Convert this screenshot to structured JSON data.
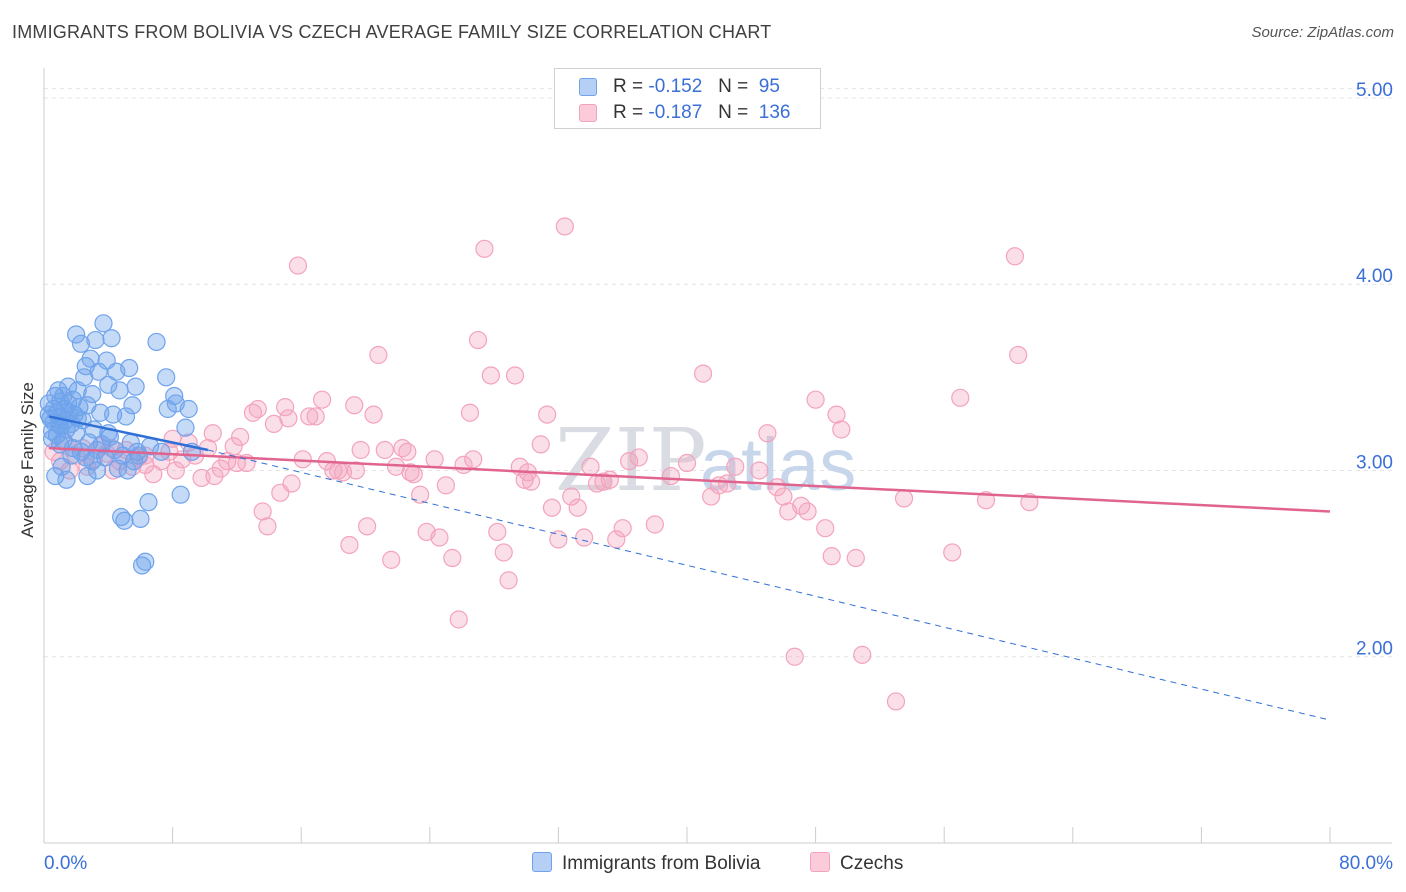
{
  "header": {
    "title": "IMMIGRANTS FROM BOLIVIA VS CZECH AVERAGE FAMILY SIZE CORRELATION CHART",
    "source": "Source: ZipAtlas.com"
  },
  "watermark": {
    "zip": "ZIP",
    "atlas": "atlas"
  },
  "legend": {
    "rows": [
      {
        "r_label": "R =",
        "r_value": "-0.152",
        "n_label": "N =",
        "n_value": "95"
      },
      {
        "r_label": "R =",
        "r_value": "-0.187",
        "n_label": "N =",
        "n_value": "136"
      }
    ]
  },
  "chart_data": {
    "type": "scatter",
    "title": "IMMIGRANTS FROM BOLIVIA VS CZECH AVERAGE FAMILY SIZE CORRELATION CHART",
    "ylabel": "Average Family Size",
    "xlabel": "",
    "xlim": [
      0,
      80
    ],
    "ylim": [
      1.0,
      5.15
    ],
    "x_tick_labels": [
      "0.0%",
      "80.0%"
    ],
    "y_ticks": [
      2.0,
      3.0,
      4.0,
      5.0
    ],
    "y_tick_labels": [
      "2.00",
      "3.00",
      "4.00",
      "5.00"
    ],
    "grid": true,
    "legend_position": "top-center",
    "colors": {
      "bolivia": "#6fa3ec",
      "bolivia_line": "#2f6fd6",
      "czech": "#f4a3bc",
      "czech_line": "#e0648e"
    },
    "series": [
      {
        "name": "Immigrants from Bolivia",
        "r": -0.152,
        "n": 95,
        "trend": {
          "solid": [
            [
              0.3,
              3.29
            ],
            [
              10.2,
              3.11
            ]
          ],
          "dashed": [
            [
              10.2,
              3.11
            ],
            [
              80,
              1.66
            ]
          ]
        },
        "points": [
          [
            0.3,
            3.36
          ],
          [
            0.4,
            3.28
          ],
          [
            0.5,
            3.21
          ],
          [
            0.6,
            3.33
          ],
          [
            0.6,
            3.26
          ],
          [
            0.7,
            3.4
          ],
          [
            0.8,
            3.19
          ],
          [
            0.8,
            3.31
          ],
          [
            0.9,
            3.43
          ],
          [
            1.0,
            3.24
          ],
          [
            1.0,
            3.37
          ],
          [
            1.1,
            3.29
          ],
          [
            1.2,
            3.16
          ],
          [
            1.2,
            3.4
          ],
          [
            1.3,
            3.33
          ],
          [
            1.3,
            3.27
          ],
          [
            1.4,
            3.22
          ],
          [
            1.5,
            3.36
          ],
          [
            1.5,
            3.45
          ],
          [
            1.6,
            3.31
          ],
          [
            1.7,
            3.25
          ],
          [
            1.8,
            3.12
          ],
          [
            1.8,
            3.38
          ],
          [
            1.9,
            3.3
          ],
          [
            2.0,
            3.73
          ],
          [
            2.0,
            3.2
          ],
          [
            2.1,
            3.43
          ],
          [
            2.2,
            3.34
          ],
          [
            2.3,
            3.68
          ],
          [
            2.3,
            3.1
          ],
          [
            2.4,
            3.27
          ],
          [
            2.5,
            3.5
          ],
          [
            2.6,
            3.56
          ],
          [
            2.6,
            3.07
          ],
          [
            2.7,
            3.35
          ],
          [
            2.8,
            3.15
          ],
          [
            2.9,
            3.6
          ],
          [
            3.0,
            3.05
          ],
          [
            3.0,
            3.41
          ],
          [
            3.1,
            3.22
          ],
          [
            3.2,
            3.7
          ],
          [
            3.3,
            3.11
          ],
          [
            3.4,
            3.53
          ],
          [
            3.5,
            3.31
          ],
          [
            3.6,
            3.14
          ],
          [
            3.7,
            3.79
          ],
          [
            3.8,
            3.07
          ],
          [
            3.9,
            3.59
          ],
          [
            4.0,
            3.46
          ],
          [
            4.1,
            3.18
          ],
          [
            4.2,
            3.71
          ],
          [
            4.3,
            3.3
          ],
          [
            4.4,
            3.11
          ],
          [
            4.5,
            3.53
          ],
          [
            4.6,
            3.01
          ],
          [
            4.7,
            3.43
          ],
          [
            4.8,
            2.75
          ],
          [
            4.9,
            3.08
          ],
          [
            5.0,
            2.73
          ],
          [
            5.1,
            3.29
          ],
          [
            5.2,
            3.0
          ],
          [
            5.3,
            3.55
          ],
          [
            5.4,
            3.15
          ],
          [
            5.5,
            3.35
          ],
          [
            5.6,
            3.05
          ],
          [
            5.7,
            3.45
          ],
          [
            5.8,
            3.1
          ],
          [
            6.0,
            2.74
          ],
          [
            6.1,
            2.49
          ],
          [
            6.3,
            2.51
          ],
          [
            6.5,
            2.83
          ],
          [
            6.6,
            3.13
          ],
          [
            7.0,
            3.69
          ],
          [
            7.3,
            3.1
          ],
          [
            7.6,
            3.5
          ],
          [
            7.7,
            3.33
          ],
          [
            8.1,
            3.4
          ],
          [
            8.2,
            3.36
          ],
          [
            8.5,
            2.87
          ],
          [
            8.8,
            3.23
          ],
          [
            9.0,
            3.33
          ],
          [
            9.2,
            3.1
          ],
          [
            0.3,
            3.3
          ],
          [
            0.5,
            3.17
          ],
          [
            0.7,
            2.97
          ],
          [
            1.1,
            3.02
          ],
          [
            1.4,
            2.95
          ],
          [
            2.7,
            2.97
          ],
          [
            3.3,
            3.0
          ],
          [
            1.7,
            3.08
          ],
          [
            0.9,
            3.25
          ],
          [
            1.0,
            3.14
          ],
          [
            2.1,
            3.28
          ],
          [
            4.0,
            3.2
          ],
          [
            5.9,
            3.08
          ]
        ]
      },
      {
        "name": "Czechs",
        "r": -0.187,
        "n": 136,
        "trend": {
          "solid": [
            [
              0.3,
              3.12
            ],
            [
              80,
              2.78
            ]
          ]
        },
        "points": [
          [
            0.6,
            3.1
          ],
          [
            1.0,
            3.05
          ],
          [
            1.3,
            3.15
          ],
          [
            1.6,
            3.0
          ],
          [
            2.0,
            3.08
          ],
          [
            2.4,
            3.12
          ],
          [
            2.7,
            3.02
          ],
          [
            3.1,
            3.06
          ],
          [
            3.5,
            3.13
          ],
          [
            3.9,
            3.09
          ],
          [
            4.3,
            3.0
          ],
          [
            4.7,
            3.05
          ],
          [
            5.1,
            3.11
          ],
          [
            5.5,
            3.02
          ],
          [
            5.9,
            3.07
          ],
          [
            6.3,
            3.03
          ],
          [
            6.8,
            2.98
          ],
          [
            7.3,
            3.05
          ],
          [
            7.8,
            3.1
          ],
          [
            8.2,
            3.0
          ],
          [
            8.6,
            3.06
          ],
          [
            9.0,
            3.15
          ],
          [
            9.4,
            3.08
          ],
          [
            9.8,
            2.96
          ],
          [
            10.2,
            3.12
          ],
          [
            10.6,
            2.97
          ],
          [
            11.0,
            3.01
          ],
          [
            11.4,
            3.05
          ],
          [
            11.8,
            3.13
          ],
          [
            12.2,
            3.18
          ],
          [
            12.6,
            3.04
          ],
          [
            13.0,
            3.31
          ],
          [
            13.3,
            3.33
          ],
          [
            13.6,
            2.78
          ],
          [
            13.9,
            2.7
          ],
          [
            14.3,
            3.25
          ],
          [
            14.7,
            2.88
          ],
          [
            15.0,
            3.34
          ],
          [
            15.4,
            2.93
          ],
          [
            15.8,
            4.1
          ],
          [
            16.1,
            3.06
          ],
          [
            16.5,
            3.29
          ],
          [
            16.9,
            3.29
          ],
          [
            17.3,
            3.38
          ],
          [
            17.6,
            3.05
          ],
          [
            18.0,
            3.0
          ],
          [
            18.3,
            3.0
          ],
          [
            18.6,
            2.99
          ],
          [
            19.0,
            2.6
          ],
          [
            19.3,
            3.35
          ],
          [
            19.7,
            3.11
          ],
          [
            20.1,
            2.7
          ],
          [
            20.5,
            3.3
          ],
          [
            20.8,
            3.62
          ],
          [
            21.2,
            3.11
          ],
          [
            21.6,
            2.52
          ],
          [
            21.9,
            3.02
          ],
          [
            22.3,
            3.12
          ],
          [
            22.6,
            3.1
          ],
          [
            23.0,
            2.98
          ],
          [
            23.4,
            2.87
          ],
          [
            23.8,
            2.67
          ],
          [
            24.3,
            3.06
          ],
          [
            24.6,
            2.64
          ],
          [
            25.0,
            2.92
          ],
          [
            25.4,
            2.53
          ],
          [
            25.8,
            2.2
          ],
          [
            26.1,
            3.03
          ],
          [
            26.5,
            3.31
          ],
          [
            27.0,
            3.7
          ],
          [
            27.4,
            4.19
          ],
          [
            27.8,
            3.51
          ],
          [
            28.2,
            2.67
          ],
          [
            28.6,
            2.56
          ],
          [
            28.9,
            2.41
          ],
          [
            29.3,
            3.51
          ],
          [
            29.6,
            3.02
          ],
          [
            29.9,
            2.95
          ],
          [
            30.3,
            2.94
          ],
          [
            30.9,
            3.14
          ],
          [
            31.3,
            3.3
          ],
          [
            31.6,
            2.8
          ],
          [
            32.0,
            2.63
          ],
          [
            32.4,
            4.31
          ],
          [
            32.8,
            2.86
          ],
          [
            33.2,
            2.8
          ],
          [
            33.6,
            2.64
          ],
          [
            34.0,
            3.02
          ],
          [
            34.4,
            2.93
          ],
          [
            34.8,
            2.94
          ],
          [
            35.2,
            2.95
          ],
          [
            35.6,
            2.63
          ],
          [
            36.0,
            2.69
          ],
          [
            36.4,
            3.05
          ],
          [
            37.0,
            3.07
          ],
          [
            38.0,
            2.71
          ],
          [
            39.0,
            2.97
          ],
          [
            40.0,
            3.04
          ],
          [
            41.0,
            3.52
          ],
          [
            41.5,
            2.86
          ],
          [
            42.0,
            2.92
          ],
          [
            42.5,
            2.93
          ],
          [
            43.0,
            3.02
          ],
          [
            44.5,
            3.0
          ],
          [
            45.0,
            3.2
          ],
          [
            46.0,
            2.86
          ],
          [
            46.3,
            2.78
          ],
          [
            46.7,
            2.0
          ],
          [
            47.1,
            2.81
          ],
          [
            47.5,
            2.78
          ],
          [
            48.0,
            3.38
          ],
          [
            48.6,
            2.69
          ],
          [
            49.0,
            2.54
          ],
          [
            49.3,
            3.3
          ],
          [
            49.6,
            3.22
          ],
          [
            50.5,
            2.53
          ],
          [
            50.9,
            2.01
          ],
          [
            53.0,
            1.76
          ],
          [
            53.5,
            2.85
          ],
          [
            56.5,
            2.56
          ],
          [
            57.0,
            3.39
          ],
          [
            58.6,
            2.84
          ],
          [
            60.4,
            4.15
          ],
          [
            60.6,
            3.62
          ],
          [
            61.3,
            2.83
          ],
          [
            4.2,
            3.12
          ],
          [
            10.5,
            3.2
          ],
          [
            6.3,
            3.08
          ],
          [
            15.2,
            3.28
          ],
          [
            22.8,
            2.99
          ],
          [
            30.1,
            2.99
          ],
          [
            45.6,
            2.91
          ],
          [
            19.4,
            3.0
          ],
          [
            8.0,
            3.17
          ],
          [
            12.0,
            3.04
          ],
          [
            26.7,
            3.06
          ]
        ]
      }
    ]
  },
  "bottom_legend": [
    {
      "label": "Immigrants from Bolivia"
    },
    {
      "label": "Czechs"
    }
  ]
}
